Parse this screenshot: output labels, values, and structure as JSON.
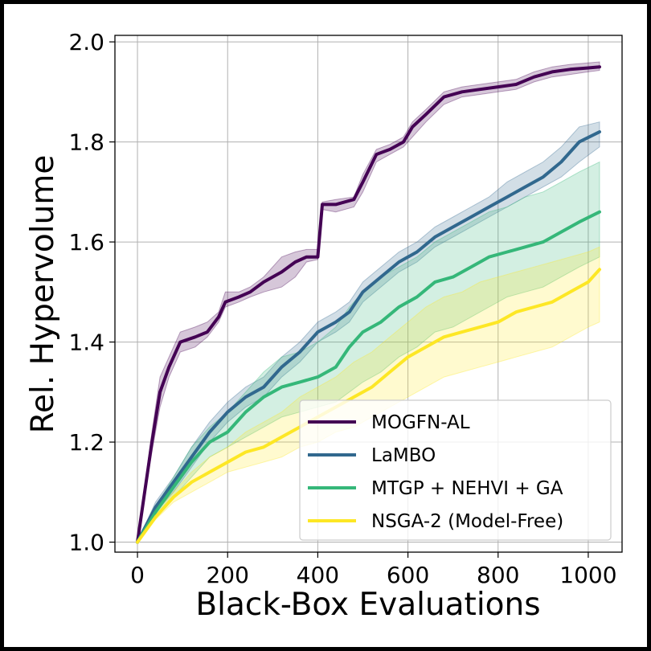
{
  "chart_data": {
    "type": "line",
    "title": "",
    "xlabel": "Black-Box Evaluations",
    "ylabel": "Rel. Hypervolume",
    "xlim": [
      -50,
      1075
    ],
    "ylim": [
      0.98,
      2.013
    ],
    "xticks": [
      0,
      200,
      400,
      600,
      800,
      1000
    ],
    "yticks": [
      1.0,
      1.2,
      1.4,
      1.6,
      1.8,
      2.0
    ],
    "xtick_labels": [
      "0",
      "200",
      "400",
      "600",
      "800",
      "1000"
    ],
    "ytick_labels": [
      "1.0",
      "1.2",
      "1.4",
      "1.6",
      "1.8",
      "2.0"
    ],
    "grid": true,
    "legend_position": "lower-right",
    "series": [
      {
        "name": "MOGFN-AL",
        "color": "#440154",
        "x": [
          0,
          32,
          50,
          70,
          95,
          128,
          155,
          180,
          195,
          225,
          250,
          280,
          320,
          350,
          375,
          400,
          410,
          440,
          480,
          500,
          530,
          560,
          590,
          610,
          640,
          680,
          720,
          760,
          800,
          840,
          880,
          920,
          960,
          1000,
          1025
        ],
        "y": [
          1.0,
          1.2,
          1.3,
          1.35,
          1.4,
          1.41,
          1.42,
          1.45,
          1.48,
          1.49,
          1.5,
          1.52,
          1.54,
          1.56,
          1.57,
          1.57,
          1.675,
          1.675,
          1.685,
          1.72,
          1.775,
          1.785,
          1.8,
          1.83,
          1.855,
          1.89,
          1.9,
          1.905,
          1.91,
          1.915,
          1.93,
          1.94,
          1.945,
          1.948,
          1.95
        ],
        "lower": [
          1.0,
          1.18,
          1.27,
          1.33,
          1.38,
          1.39,
          1.41,
          1.44,
          1.47,
          1.48,
          1.49,
          1.5,
          1.51,
          1.53,
          1.56,
          1.565,
          1.665,
          1.66,
          1.67,
          1.7,
          1.76,
          1.775,
          1.79,
          1.81,
          1.84,
          1.875,
          1.89,
          1.895,
          1.9,
          1.905,
          1.92,
          1.93,
          1.935,
          1.94,
          1.943
        ],
        "upper": [
          1.0,
          1.22,
          1.33,
          1.37,
          1.42,
          1.43,
          1.44,
          1.46,
          1.5,
          1.5,
          1.51,
          1.53,
          1.57,
          1.58,
          1.585,
          1.585,
          1.68,
          1.685,
          1.69,
          1.735,
          1.785,
          1.795,
          1.81,
          1.84,
          1.865,
          1.9,
          1.91,
          1.915,
          1.92,
          1.925,
          1.94,
          1.95,
          1.955,
          1.958,
          1.96
        ]
      },
      {
        "name": "LaMBO",
        "color": "#31688e",
        "x": [
          0,
          40,
          80,
          120,
          160,
          200,
          240,
          280,
          320,
          360,
          400,
          440,
          470,
          500,
          540,
          580,
          620,
          660,
          700,
          740,
          780,
          820,
          860,
          900,
          940,
          980,
          1025
        ],
        "y": [
          1.0,
          1.07,
          1.12,
          1.17,
          1.22,
          1.26,
          1.29,
          1.31,
          1.35,
          1.38,
          1.42,
          1.44,
          1.46,
          1.5,
          1.53,
          1.56,
          1.58,
          1.61,
          1.63,
          1.65,
          1.67,
          1.69,
          1.71,
          1.73,
          1.76,
          1.8,
          1.82
        ],
        "lower": [
          1.0,
          1.06,
          1.1,
          1.15,
          1.2,
          1.24,
          1.27,
          1.29,
          1.33,
          1.36,
          1.4,
          1.42,
          1.44,
          1.48,
          1.51,
          1.54,
          1.56,
          1.59,
          1.61,
          1.63,
          1.65,
          1.67,
          1.69,
          1.71,
          1.73,
          1.76,
          1.79
        ],
        "upper": [
          1.0,
          1.08,
          1.13,
          1.19,
          1.24,
          1.28,
          1.31,
          1.33,
          1.37,
          1.4,
          1.44,
          1.46,
          1.48,
          1.52,
          1.55,
          1.58,
          1.6,
          1.63,
          1.65,
          1.67,
          1.69,
          1.72,
          1.74,
          1.76,
          1.79,
          1.83,
          1.84
        ]
      },
      {
        "name": "MTGP + NEHVI + GA",
        "color": "#35b779",
        "x": [
          0,
          40,
          80,
          120,
          160,
          200,
          240,
          280,
          320,
          360,
          400,
          440,
          470,
          500,
          540,
          580,
          620,
          660,
          700,
          740,
          780,
          820,
          860,
          900,
          940,
          980,
          1025
        ],
        "y": [
          1.0,
          1.06,
          1.11,
          1.16,
          1.2,
          1.22,
          1.26,
          1.29,
          1.31,
          1.32,
          1.33,
          1.35,
          1.39,
          1.42,
          1.44,
          1.47,
          1.49,
          1.52,
          1.53,
          1.55,
          1.57,
          1.58,
          1.59,
          1.6,
          1.62,
          1.64,
          1.66
        ],
        "lower": [
          1.0,
          1.05,
          1.09,
          1.13,
          1.17,
          1.19,
          1.21,
          1.23,
          1.25,
          1.26,
          1.27,
          1.28,
          1.3,
          1.32,
          1.34,
          1.37,
          1.39,
          1.42,
          1.43,
          1.45,
          1.47,
          1.49,
          1.5,
          1.51,
          1.53,
          1.55,
          1.57
        ],
        "upper": [
          1.0,
          1.07,
          1.13,
          1.19,
          1.23,
          1.26,
          1.3,
          1.34,
          1.37,
          1.38,
          1.4,
          1.43,
          1.47,
          1.5,
          1.53,
          1.55,
          1.57,
          1.6,
          1.62,
          1.64,
          1.66,
          1.67,
          1.69,
          1.7,
          1.72,
          1.74,
          1.76
        ]
      },
      {
        "name": "NSGA-2 (Model-Free)",
        "color": "#fde725",
        "x": [
          0,
          40,
          80,
          120,
          160,
          200,
          240,
          280,
          320,
          360,
          400,
          440,
          480,
          520,
          560,
          600,
          640,
          680,
          720,
          760,
          800,
          840,
          880,
          920,
          960,
          1000,
          1025
        ],
        "y": [
          1.0,
          1.05,
          1.09,
          1.12,
          1.14,
          1.16,
          1.18,
          1.19,
          1.21,
          1.23,
          1.25,
          1.27,
          1.29,
          1.31,
          1.34,
          1.37,
          1.39,
          1.41,
          1.42,
          1.43,
          1.44,
          1.46,
          1.47,
          1.48,
          1.5,
          1.52,
          1.545
        ],
        "lower": [
          1.0,
          1.045,
          1.08,
          1.1,
          1.12,
          1.14,
          1.15,
          1.16,
          1.17,
          1.19,
          1.2,
          1.22,
          1.23,
          1.25,
          1.27,
          1.29,
          1.31,
          1.33,
          1.34,
          1.35,
          1.36,
          1.37,
          1.38,
          1.39,
          1.41,
          1.43,
          1.44
        ],
        "upper": [
          1.0,
          1.06,
          1.1,
          1.14,
          1.17,
          1.19,
          1.22,
          1.24,
          1.26,
          1.29,
          1.31,
          1.33,
          1.36,
          1.38,
          1.41,
          1.44,
          1.47,
          1.49,
          1.5,
          1.52,
          1.53,
          1.54,
          1.55,
          1.56,
          1.57,
          1.58,
          1.59
        ]
      }
    ]
  }
}
